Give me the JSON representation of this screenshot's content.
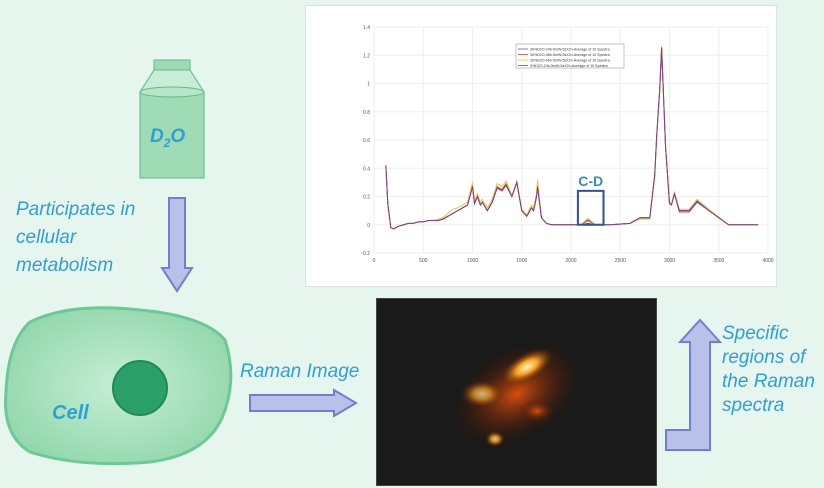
{
  "bottle": {
    "label_main": "D",
    "label_sub": "2",
    "label_end": "O"
  },
  "labels": {
    "participates": [
      "Participates in",
      "cellular",
      "metabolism"
    ],
    "raman_image": "Raman Image",
    "specific": [
      "Specific",
      "regions  of",
      "the Raman",
      "spectra"
    ],
    "cell": "Cell"
  },
  "colors": {
    "text_accent": "#2f9fd6",
    "cell_fill": "#9fdcb6",
    "nucleus": "#2aa06a",
    "arrow_fill": "#b9c0ea",
    "arrow_border": "#6f7fcf"
  },
  "chart_data": {
    "type": "line",
    "xlim": [
      0,
      4000
    ],
    "ylim": [
      -0.2,
      1.4
    ],
    "xticks": [
      "0",
      "500",
      "1000",
      "1500",
      "2000",
      "2500",
      "3000",
      "3500",
      "4000"
    ],
    "yticks": [
      "-0.2",
      "0",
      "0.2",
      "0.4",
      "0.6",
      "0.8",
      "1",
      "1.2",
      "1.4"
    ],
    "grid": true,
    "legend_placement": "top-center",
    "annotation": {
      "text": "C-D",
      "x_range": [
        2070,
        2330
      ],
      "y_range": [
        0,
        0.24
      ]
    },
    "x": [
      120,
      140,
      170,
      200,
      250,
      300,
      350,
      400,
      450,
      500,
      550,
      600,
      650,
      700,
      750,
      800,
      850,
      900,
      950,
      1000,
      1020,
      1050,
      1080,
      1100,
      1150,
      1200,
      1250,
      1300,
      1340,
      1400,
      1450,
      1500,
      1550,
      1600,
      1620,
      1650,
      1660,
      1700,
      1750,
      1800,
      2000,
      2100,
      2170,
      2250,
      2400,
      2600,
      2700,
      2800,
      2850,
      2870,
      2900,
      2920,
      2940,
      2960,
      3000,
      3020,
      3050,
      3100,
      3200,
      3280,
      3400,
      3600,
      3900
    ],
    "series": [
      {
        "name": "30%D2O-24h-5mW-5sX2n-Average of 10 Spectra",
        "color": "#3b6fb5",
        "values": [
          0.42,
          0.15,
          -0.02,
          -0.03,
          -0.01,
          0,
          0.01,
          0.01,
          0.02,
          0.02,
          0.03,
          0.03,
          0.03,
          0.04,
          0.06,
          0.08,
          0.1,
          0.12,
          0.14,
          0.27,
          0.15,
          0.2,
          0.14,
          0.16,
          0.1,
          0.16,
          0.26,
          0.24,
          0.28,
          0.2,
          0.3,
          0.1,
          0.06,
          0.12,
          0.1,
          0.2,
          0.27,
          0.05,
          0.01,
          0,
          0,
          0,
          0.03,
          0,
          0,
          0.01,
          0.05,
          0.05,
          0.35,
          0.63,
          0.95,
          1.25,
          0.9,
          0.55,
          0.15,
          0.14,
          0.22,
          0.1,
          0.1,
          0.17,
          0.1,
          0,
          0
        ]
      },
      {
        "name": "30%D2O-48h-5mW-5sX2n-Average of 10 Spectra",
        "color": "#c8502a",
        "values": [
          0.42,
          0.15,
          -0.02,
          -0.03,
          -0.01,
          0,
          0.01,
          0.01,
          0.02,
          0.02,
          0.03,
          0.03,
          0.03,
          0.04,
          0.06,
          0.08,
          0.1,
          0.12,
          0.14,
          0.28,
          0.15,
          0.2,
          0.14,
          0.16,
          0.1,
          0.16,
          0.27,
          0.25,
          0.29,
          0.2,
          0.3,
          0.1,
          0.06,
          0.12,
          0.1,
          0.2,
          0.28,
          0.05,
          0.01,
          0,
          0,
          0,
          0.035,
          0,
          0,
          0.01,
          0.05,
          0.05,
          0.35,
          0.63,
          0.95,
          1.26,
          0.9,
          0.55,
          0.15,
          0.14,
          0.22,
          0.09,
          0.09,
          0.16,
          0.1,
          0,
          0
        ]
      },
      {
        "name": "30%D2O-96h-5mW-5sX2n-Average of 10 Spectra",
        "color": "#f0c040",
        "values": [
          0.42,
          0.15,
          -0.02,
          -0.03,
          -0.01,
          0,
          0.01,
          0.01,
          0.02,
          0.02,
          0.03,
          0.03,
          0.04,
          0.05,
          0.08,
          0.11,
          0.12,
          0.14,
          0.16,
          0.3,
          0.17,
          0.22,
          0.16,
          0.18,
          0.12,
          0.18,
          0.29,
          0.27,
          0.31,
          0.21,
          0.31,
          0.11,
          0.07,
          0.14,
          0.12,
          0.22,
          0.32,
          0.05,
          0.01,
          0,
          0,
          0,
          0.045,
          0,
          0,
          0.01,
          0.04,
          0.04,
          0.34,
          0.62,
          0.94,
          1.24,
          0.9,
          0.55,
          0.16,
          0.15,
          0.23,
          0.11,
          0.11,
          0.18,
          0.11,
          0,
          0
        ]
      },
      {
        "name": "0%D2O-24h-5mW-5sX2n-Average of 10 Spectra",
        "color": "#7b3f8a",
        "values": [
          0.42,
          0.15,
          -0.02,
          -0.03,
          -0.01,
          0,
          0.01,
          0.01,
          0.02,
          0.02,
          0.03,
          0.03,
          0.03,
          0.04,
          0.06,
          0.08,
          0.1,
          0.12,
          0.14,
          0.27,
          0.15,
          0.2,
          0.14,
          0.16,
          0.1,
          0.16,
          0.26,
          0.24,
          0.28,
          0.2,
          0.3,
          0.1,
          0.06,
          0.12,
          0.1,
          0.2,
          0.27,
          0.05,
          0.01,
          0,
          0,
          0,
          0.01,
          0,
          0,
          0.01,
          0.05,
          0.05,
          0.35,
          0.63,
          0.95,
          1.25,
          0.9,
          0.55,
          0.15,
          0.14,
          0.22,
          0.1,
          0.1,
          0.16,
          0.1,
          0,
          0
        ]
      }
    ]
  }
}
